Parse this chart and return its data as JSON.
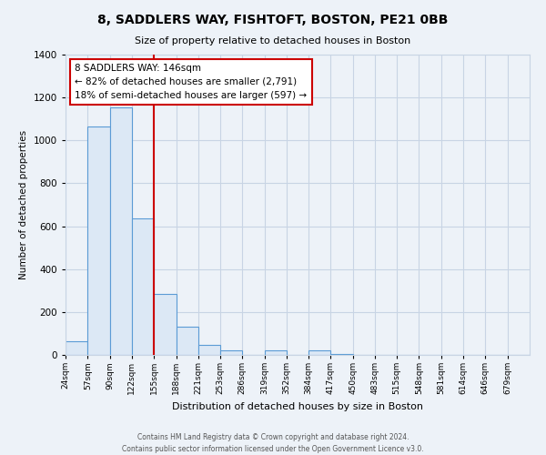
{
  "title": "8, SADDLERS WAY, FISHTOFT, BOSTON, PE21 0BB",
  "subtitle": "Size of property relative to detached houses in Boston",
  "bar_color": "#dce8f5",
  "bar_edge_color": "#5b9bd5",
  "categories": [
    "24sqm",
    "57sqm",
    "90sqm",
    "122sqm",
    "155sqm",
    "188sqm",
    "221sqm",
    "253sqm",
    "286sqm",
    "319sqm",
    "352sqm",
    "384sqm",
    "417sqm",
    "450sqm",
    "483sqm",
    "515sqm",
    "548sqm",
    "581sqm",
    "614sqm",
    "646sqm",
    "679sqm"
  ],
  "values": [
    65,
    1065,
    1155,
    635,
    285,
    130,
    45,
    20,
    0,
    20,
    0,
    20,
    5,
    0,
    0,
    0,
    0,
    0,
    0,
    0,
    0
  ],
  "ylabel": "Number of detached properties",
  "xlabel": "Distribution of detached houses by size in Boston",
  "ylim": [
    0,
    1400
  ],
  "yticks": [
    0,
    200,
    400,
    600,
    800,
    1000,
    1200,
    1400
  ],
  "bin_edges": [
    24,
    57,
    90,
    122,
    155,
    188,
    221,
    253,
    286,
    319,
    352,
    384,
    417,
    450,
    483,
    515,
    548,
    581,
    614,
    646,
    679,
    712
  ],
  "property_line_x": 155,
  "property_line_label": "8 SADDLERS WAY: 146sqm",
  "annotation_line1": "← 82% of detached houses are smaller (2,791)",
  "annotation_line2": "18% of semi-detached houses are larger (597) →",
  "footer_line1": "Contains HM Land Registry data © Crown copyright and database right 2024.",
  "footer_line2": "Contains public sector information licensed under the Open Government Licence v3.0.",
  "background_color": "#edf2f8",
  "plot_bg_color": "#edf2f8",
  "grid_color": "#c8d4e4"
}
